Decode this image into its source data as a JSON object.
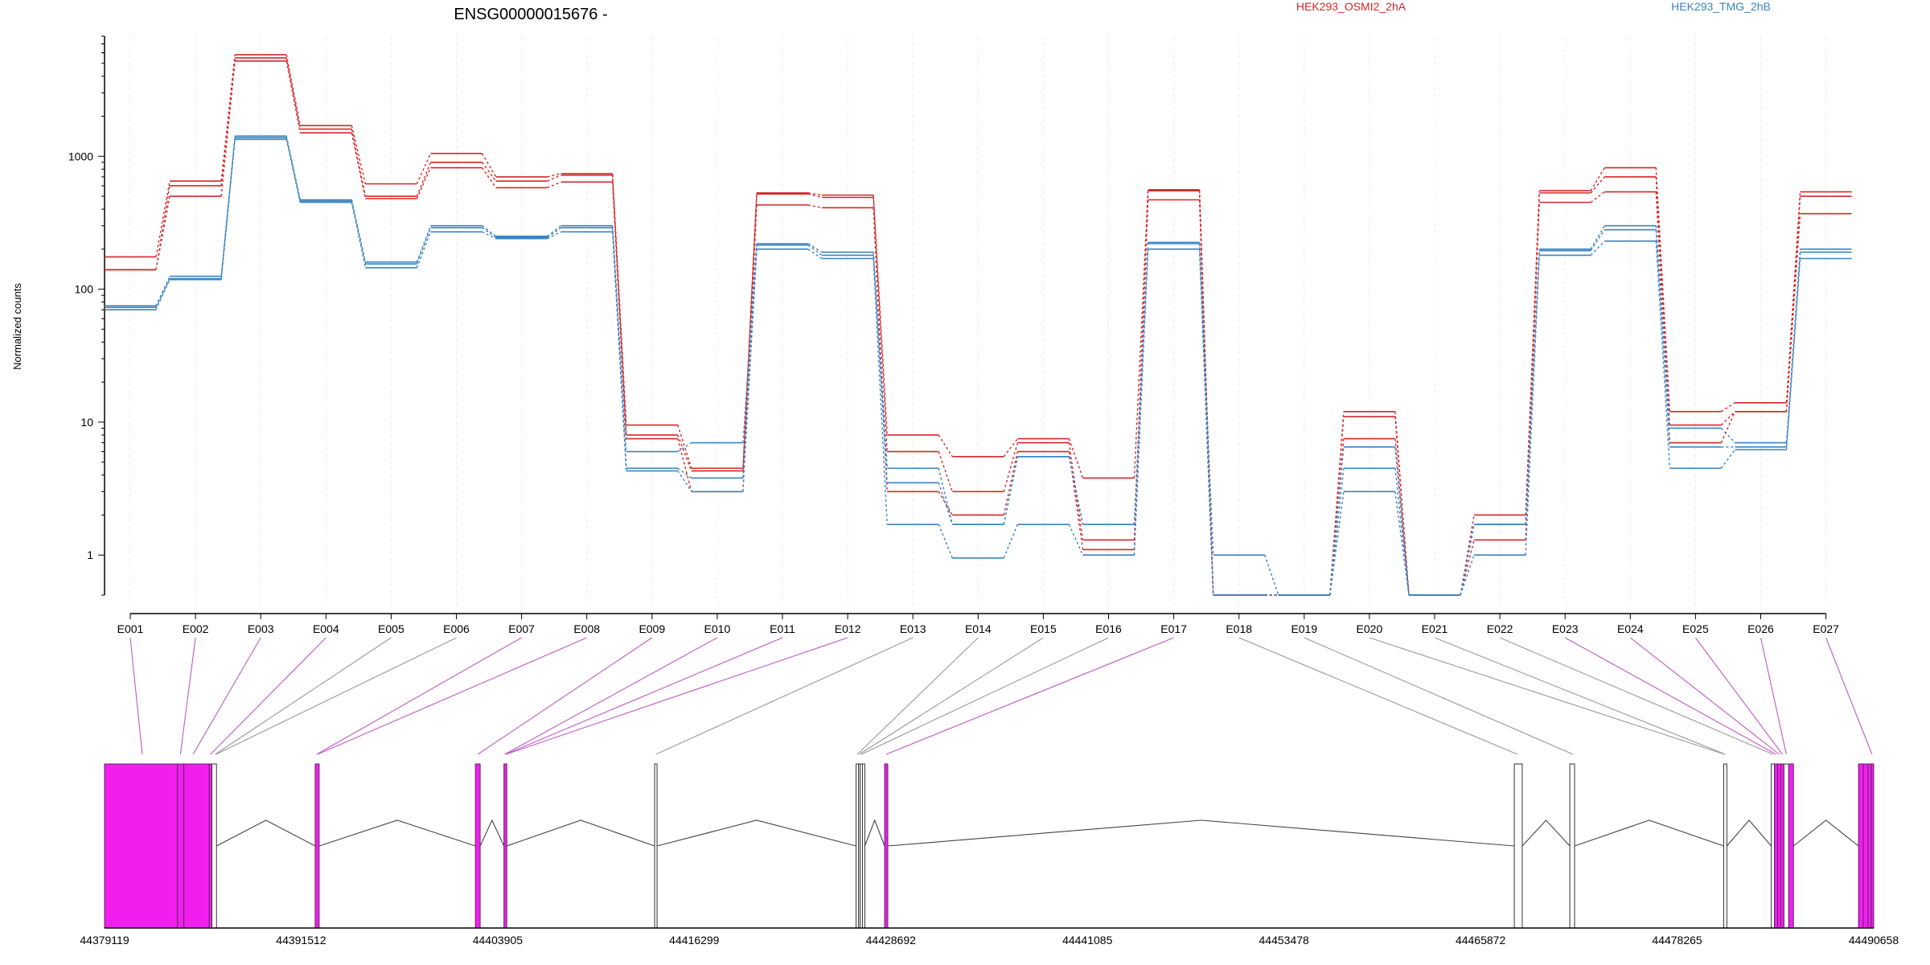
{
  "title": "ENSG00000015676 -",
  "legend": [
    {
      "name": "HEK293_OSMI2_2hA",
      "color": "#d62728"
    },
    {
      "name": "HEK293_TMG_2hB",
      "color": "#3a83c1"
    }
  ],
  "colors": {
    "highlight": "#f21ef0",
    "connector_highlight": "#c158c9",
    "connector_normal": "#999999"
  },
  "chart_data": {
    "type": "line",
    "ylabel": "Normalized counts",
    "yscale": "log",
    "ylim": [
      0.5,
      8000
    ],
    "yticks": [
      1,
      10,
      100,
      1000
    ],
    "ytick_labels": [
      "1",
      "10",
      "100",
      "1000"
    ],
    "categories": [
      "E001",
      "E002",
      "E003",
      "E004",
      "E005",
      "E006",
      "E007",
      "E008",
      "E009",
      "E010",
      "E011",
      "E012",
      "E013",
      "E014",
      "E015",
      "E016",
      "E017",
      "E018",
      "E019",
      "E020",
      "E021",
      "E022",
      "E023",
      "E024",
      "E025",
      "E026",
      "E027"
    ],
    "series": [
      {
        "group": "HEK293_OSMI2_2hA",
        "values": [
          175,
          650,
          5800,
          1700,
          620,
          1050,
          700,
          740,
          9.5,
          4.5,
          530,
          510,
          8,
          5.5,
          7.5,
          3.8,
          560,
          0.5,
          0.5,
          12,
          0.5,
          2,
          550,
          820,
          12,
          14,
          540
        ]
      },
      {
        "group": "HEK293_OSMI2_2hA",
        "values": [
          140,
          600,
          5500,
          1600,
          500,
          900,
          650,
          720,
          8,
          4.3,
          520,
          490,
          6,
          3,
          7,
          1.3,
          550,
          0.5,
          0.5,
          11,
          0.5,
          1.7,
          530,
          700,
          9.5,
          12,
          500
        ]
      },
      {
        "group": "HEK293_OSMI2_2hA",
        "values": [
          140,
          500,
          5200,
          1500,
          480,
          820,
          580,
          640,
          7.5,
          3,
          430,
          410,
          3,
          2,
          6,
          1.1,
          470,
          0.5,
          0.5,
          7.5,
          0.5,
          1.3,
          450,
          540,
          7,
          12,
          370
        ]
      },
      {
        "group": "HEK293_TMG_2hB",
        "values": [
          75,
          125,
          1420,
          470,
          160,
          300,
          250,
          300,
          6,
          7,
          220,
          190,
          4.5,
          1.7,
          5.5,
          1.7,
          225,
          1,
          0.5,
          6.5,
          0.5,
          1.7,
          200,
          300,
          9,
          7,
          200
        ]
      },
      {
        "group": "HEK293_TMG_2hB",
        "values": [
          73,
          120,
          1380,
          460,
          155,
          290,
          245,
          290,
          4.5,
          3.8,
          215,
          180,
          3.5,
          1.7,
          5.5,
          1.7,
          220,
          0.5,
          0.5,
          4.5,
          0.5,
          1.7,
          195,
          280,
          6.5,
          6.5,
          190
        ]
      },
      {
        "group": "HEK293_TMG_2hB",
        "values": [
          70,
          118,
          1340,
          450,
          145,
          270,
          240,
          270,
          4.3,
          3,
          200,
          170,
          1.7,
          0.95,
          1.7,
          1,
          200,
          0.5,
          0.5,
          3,
          0.5,
          1,
          180,
          230,
          4.5,
          6.2,
          170
        ]
      }
    ]
  },
  "gene_model": {
    "coordinate_labels": [
      "44379119",
      "44391512",
      "44403905",
      "44416299",
      "44428692",
      "44441085",
      "44453478",
      "44465872",
      "44478265",
      "44490658"
    ],
    "exons": [
      {
        "id": "E001",
        "start": 44379119,
        "end": 44383719,
        "highlight": true
      },
      {
        "id": "E002",
        "start": 44383719,
        "end": 44384119,
        "highlight": true
      },
      {
        "id": "E003",
        "start": 44384119,
        "end": 44385719,
        "highlight": true
      },
      {
        "id": "E004",
        "start": 44385719,
        "end": 44385889,
        "highlight": true
      },
      {
        "id": "E005",
        "start": 44385889,
        "end": 44386179,
        "highlight": false
      },
      {
        "id": "E006",
        "start": 44392400,
        "end": 44392650,
        "highlight": true
      },
      {
        "id": "E007",
        "start": 44402500,
        "end": 44402800,
        "highlight": true
      },
      {
        "id": "E008",
        "start": 44404300,
        "end": 44404480,
        "highlight": true
      },
      {
        "id": "E009",
        "start": 44413800,
        "end": 44413950,
        "highlight": false
      },
      {
        "id": "E010",
        "start": 44426500,
        "end": 44426660,
        "highlight": false
      },
      {
        "id": "E011",
        "start": 44426660,
        "end": 44426760,
        "highlight": false
      },
      {
        "id": "E012",
        "start": 44426760,
        "end": 44426900,
        "highlight": false
      },
      {
        "id": "E013",
        "start": 44426900,
        "end": 44427050,
        "highlight": false
      },
      {
        "id": "E014",
        "start": 44428300,
        "end": 44428500,
        "highlight": true
      },
      {
        "id": "E015",
        "start": 44468000,
        "end": 44468500,
        "highlight": false
      },
      {
        "id": "E016",
        "start": 44471500,
        "end": 44471800,
        "highlight": false
      },
      {
        "id": "E017",
        "start": 44481200,
        "end": 44481400,
        "highlight": false
      },
      {
        "id": "E018",
        "start": 44484200,
        "end": 44484400,
        "highlight": false
      },
      {
        "id": "E019",
        "start": 44484400,
        "end": 44484600,
        "highlight": true
      },
      {
        "id": "E020",
        "start": 44484600,
        "end": 44484800,
        "highlight": true
      },
      {
        "id": "E021",
        "start": 44484800,
        "end": 44485000,
        "highlight": true
      },
      {
        "id": "E022",
        "start": 44485000,
        "end": 44485300,
        "highlight": false
      },
      {
        "id": "E023",
        "start": 44485300,
        "end": 44485600,
        "highlight": true
      },
      {
        "id": "E024",
        "start": 44489700,
        "end": 44490000,
        "highlight": true
      },
      {
        "id": "E025",
        "start": 44490000,
        "end": 44490300,
        "highlight": true
      },
      {
        "id": "E026",
        "start": 44490300,
        "end": 44490500,
        "highlight": true
      },
      {
        "id": "E027",
        "start": 44490500,
        "end": 44490658,
        "highlight": true
      }
    ],
    "links": [
      {
        "bin": "E001",
        "pos": 44381500,
        "highlight": true
      },
      {
        "bin": "E002",
        "pos": 44383900,
        "highlight": true
      },
      {
        "bin": "E003",
        "pos": 44384700,
        "highlight": true
      },
      {
        "bin": "E004",
        "pos": 44385800,
        "highlight": true
      },
      {
        "bin": "E005",
        "pos": 44386100,
        "highlight": false
      },
      {
        "bin": "E006",
        "pos": 44386150,
        "highlight": false
      },
      {
        "bin": "E007",
        "pos": 44392500,
        "highlight": true
      },
      {
        "bin": "E008",
        "pos": 44392550,
        "highlight": true
      },
      {
        "bin": "E009",
        "pos": 44402650,
        "highlight": true
      },
      {
        "bin": "E010",
        "pos": 44404350,
        "highlight": true
      },
      {
        "bin": "E011",
        "pos": 44404400,
        "highlight": true
      },
      {
        "bin": "E012",
        "pos": 44404430,
        "highlight": true
      },
      {
        "bin": "E013",
        "pos": 44413880,
        "highlight": false
      },
      {
        "bin": "E014",
        "pos": 44426580,
        "highlight": false
      },
      {
        "bin": "E015",
        "pos": 44426700,
        "highlight": false
      },
      {
        "bin": "E016",
        "pos": 44426830,
        "highlight": false
      },
      {
        "bin": "E017",
        "pos": 44428400,
        "highlight": true
      },
      {
        "bin": "E018",
        "pos": 44468200,
        "highlight": false
      },
      {
        "bin": "E019",
        "pos": 44471700,
        "highlight": false
      },
      {
        "bin": "E020",
        "pos": 44481250,
        "highlight": false
      },
      {
        "bin": "E021",
        "pos": 44481300,
        "highlight": false
      },
      {
        "bin": "E022",
        "pos": 44484300,
        "highlight": false
      },
      {
        "bin": "E023",
        "pos": 44484500,
        "highlight": true
      },
      {
        "bin": "E024",
        "pos": 44484700,
        "highlight": true
      },
      {
        "bin": "E025",
        "pos": 44484900,
        "highlight": true
      },
      {
        "bin": "E026",
        "pos": 44485150,
        "highlight": true
      },
      {
        "bin": "E027",
        "pos": 44490550,
        "highlight": true
      }
    ]
  }
}
